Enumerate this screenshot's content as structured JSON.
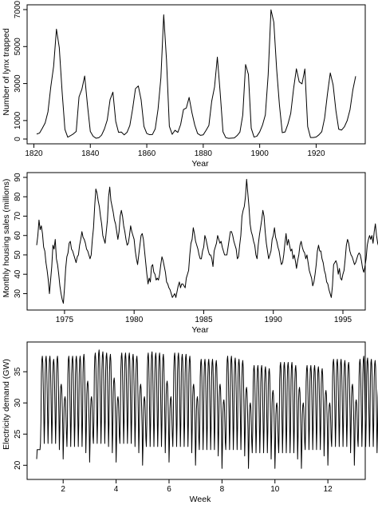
{
  "chart_data": [
    {
      "type": "line",
      "xlabel": "Year",
      "ylabel": "Number of lynx trapped",
      "xlim": [
        1821,
        1934
      ],
      "ylim": [
        0,
        7000
      ],
      "xticks": [
        1820,
        1840,
        1860,
        1880,
        1900,
        1920
      ],
      "yticks": [
        0,
        1000,
        3000,
        5000,
        7000
      ],
      "series": [
        {
          "x_start": 1821,
          "x_step": 1,
          "values": [
            269,
            321,
            585,
            871,
            1475,
            2821,
            3928,
            5943,
            4950,
            2577,
            523,
            98,
            184,
            279,
            409,
            2285,
            2685,
            3409,
            1824,
            409,
            151,
            45,
            68,
            213,
            546,
            1033,
            2129,
            2536,
            957,
            361,
            377,
            225,
            360,
            731,
            1638,
            2725,
            2871,
            2119,
            684,
            299,
            236,
            245,
            552,
            1623,
            3311,
            6721,
            4254,
            687,
            255,
            473,
            358,
            784,
            1594,
            1676,
            2251,
            1426,
            756,
            299,
            201,
            229,
            469,
            736,
            2042,
            2811,
            4431,
            2511,
            389,
            73,
            39,
            49,
            59,
            188,
            377,
            1292,
            4031,
            3495,
            587,
            105,
            153,
            387,
            758,
            1307,
            3465,
            6991,
            6313,
            3794,
            1836,
            345,
            382,
            808,
            1388,
            2713,
            3800,
            3091,
            2985,
            3790,
            674,
            81,
            80,
            108,
            229,
            399,
            1132,
            2432,
            3574,
            2935,
            1537,
            529,
            485,
            662,
            1000,
            1590,
            2657,
            3396
          ]
        }
      ]
    },
    {
      "type": "line",
      "xlabel": "Year",
      "ylabel": "Monthly housing sales (millions)",
      "xlim": [
        1973.0,
        1995.917
      ],
      "ylim": [
        24,
        90
      ],
      "xticks": [
        1975,
        1980,
        1985,
        1990,
        1995
      ],
      "yticks": [
        30,
        40,
        50,
        60,
        70,
        80,
        90
      ],
      "series": [
        {
          "x_start": 1973.0,
          "x_step": 0.08333,
          "values": [
            55,
            60,
            68,
            63,
            65,
            61,
            54,
            52,
            46,
            42,
            37,
            30,
            37,
            44,
            55,
            53,
            58,
            48,
            45,
            40,
            34,
            30,
            27,
            25,
            33,
            43,
            49,
            51,
            56,
            57,
            53,
            52,
            50,
            48,
            46,
            49,
            50,
            55,
            58,
            62,
            59,
            58,
            56,
            53,
            52,
            50,
            48,
            50,
            58,
            64,
            75,
            84,
            82,
            78,
            75,
            70,
            66,
            60,
            58,
            56,
            62,
            68,
            80,
            85,
            78,
            75,
            72,
            68,
            66,
            62,
            58,
            62,
            70,
            73,
            70,
            65,
            62,
            58,
            55,
            56,
            60,
            65,
            62,
            60,
            58,
            52,
            48,
            45,
            50,
            55,
            60,
            61,
            58,
            52,
            46,
            40,
            35,
            38,
            36,
            44,
            45,
            41,
            40,
            37,
            38,
            37,
            40,
            45,
            49,
            47,
            44,
            41,
            36,
            35,
            33,
            32,
            30,
            28,
            29,
            30,
            28,
            31,
            34,
            36,
            33,
            35,
            35,
            34,
            33,
            38,
            40,
            42,
            50,
            56,
            58,
            64,
            61,
            57,
            55,
            53,
            50,
            48,
            48,
            52,
            54,
            60,
            58,
            55,
            52,
            50,
            50,
            48,
            44,
            52,
            54,
            56,
            60,
            58,
            56,
            57,
            54,
            52,
            50,
            50,
            50,
            54,
            58,
            62,
            62,
            60,
            57,
            55,
            53,
            48,
            49,
            55,
            60,
            70,
            73,
            75,
            80,
            89,
            82,
            75,
            66,
            62,
            60,
            57,
            55,
            50,
            48,
            55,
            60,
            64,
            68,
            73,
            70,
            62,
            56,
            52,
            48,
            50,
            52,
            58,
            60,
            64,
            59,
            57,
            54,
            52,
            48,
            45,
            46,
            50,
            56,
            61,
            55,
            58,
            55,
            52,
            53,
            48,
            50,
            47,
            43,
            47,
            50,
            55,
            57,
            54,
            52,
            51,
            48,
            50,
            46,
            42,
            40,
            38,
            34,
            36,
            40,
            45,
            52,
            55,
            52,
            52,
            48,
            46,
            42,
            40,
            36,
            35,
            32,
            30,
            28,
            34,
            45,
            46,
            47,
            45,
            40,
            43,
            38,
            37,
            40,
            42,
            48,
            55,
            58,
            56,
            52,
            50,
            49,
            47,
            45,
            46,
            48,
            50,
            51,
            50,
            47,
            43,
            41,
            44,
            48,
            55,
            58,
            60,
            58,
            60,
            56,
            62,
            66,
            60,
            56,
            54,
            52,
            50,
            47,
            50,
            54,
            58,
            60,
            74,
            65,
            62,
            58,
            52,
            46,
            44,
            40,
            46,
            52,
            58,
            62,
            60,
            58,
            55,
            50,
            48,
            46,
            52,
            56,
            60,
            63,
            64,
            64,
            62,
            60,
            54,
            44
          ]
        }
      ]
    },
    {
      "type": "line",
      "xlabel": "Week",
      "ylabel": "Electricity demand (GW)",
      "xlim": [
        1,
        13.05
      ],
      "ylim": [
        18.5,
        39
      ],
      "xticks": [
        2,
        4,
        6,
        8,
        10,
        12
      ],
      "yticks": [
        20,
        25,
        30,
        35
      ],
      "daily_peaks_gw": [
        22.5,
        37.5,
        37.5,
        37.5,
        37.0,
        37.5,
        33.0,
        31.0,
        37.5,
        37.5,
        37.5,
        37.5,
        37.8,
        33.5,
        31.0,
        38.0,
        38.5,
        38.2,
        38.0,
        37.8,
        34.0,
        31.0,
        38.0,
        38.0,
        38.0,
        37.8,
        37.5,
        33.0,
        31.0,
        38.0,
        38.2,
        38.0,
        38.0,
        37.8,
        33.5,
        31.0,
        38.0,
        38.0,
        37.8,
        37.8,
        37.5,
        33.0,
        31.0,
        37.0,
        37.0,
        37.0,
        37.0,
        36.8,
        33.0,
        30.5,
        37.5,
        37.5,
        37.2,
        37.0,
        36.8,
        32.5,
        30.0,
        36.0,
        36.0,
        36.0,
        35.8,
        35.5,
        32.0,
        30.0,
        36.5,
        36.5,
        36.5,
        36.5,
        36.0,
        32.5,
        30.0,
        36.0,
        36.0,
        36.0,
        35.8,
        35.5,
        32.0,
        30.0,
        37.0,
        37.0,
        37.0,
        36.8,
        36.5,
        33.0,
        30.5,
        37.0,
        37.5,
        37.2,
        37.0,
        36.8,
        33.0,
        30.5,
        37.0,
        37.0,
        37.0,
        36.8,
        36.5,
        29.0
      ],
      "daily_troughs_gw": [
        21.0,
        23.5,
        23.5,
        23.5,
        23.5,
        23.5,
        22.5,
        21.0,
        23.0,
        23.0,
        23.0,
        23.0,
        23.0,
        22.0,
        20.5,
        23.5,
        23.5,
        23.5,
        23.5,
        23.0,
        22.0,
        20.5,
        23.5,
        23.5,
        23.5,
        23.5,
        23.0,
        22.0,
        20.0,
        23.0,
        23.0,
        23.0,
        23.0,
        23.0,
        22.0,
        20.5,
        23.0,
        23.0,
        23.0,
        23.0,
        23.0,
        22.0,
        20.0,
        22.5,
        22.5,
        22.5,
        22.5,
        22.5,
        21.5,
        19.5,
        22.5,
        22.5,
        22.5,
        22.5,
        22.5,
        21.5,
        19.5,
        22.0,
        22.0,
        22.0,
        22.0,
        22.0,
        21.0,
        19.5,
        22.0,
        22.0,
        22.0,
        22.0,
        22.0,
        21.0,
        19.5,
        22.5,
        22.5,
        22.5,
        22.5,
        22.5,
        21.5,
        20.0,
        23.0,
        23.0,
        23.0,
        23.0,
        23.0,
        22.0,
        20.0,
        23.0,
        23.0,
        23.0,
        23.0,
        23.0,
        22.0,
        20.0,
        23.0,
        23.0,
        23.0,
        23.0,
        23.0,
        23.0
      ]
    }
  ]
}
